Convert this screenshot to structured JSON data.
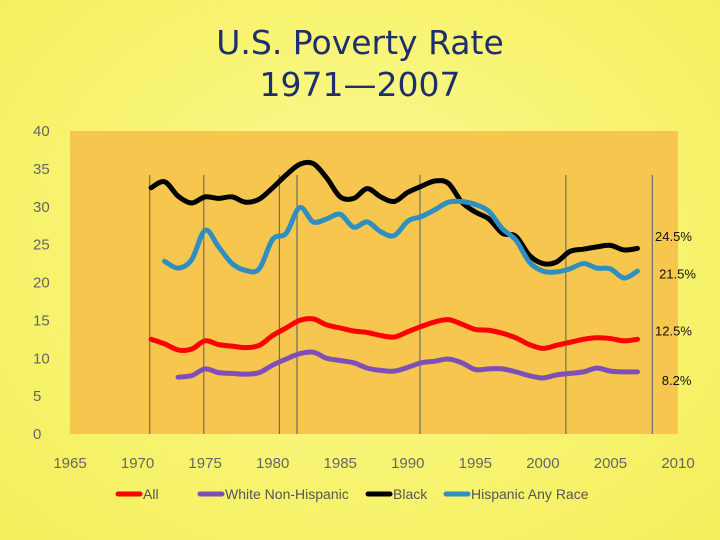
{
  "title_line1": "U.S. Poverty Rate",
  "title_line2": "1971—2007",
  "chart_data": {
    "type": "line",
    "title": "U.S. Poverty Rate 1971—2007",
    "xlim": [
      1965,
      2010
    ],
    "ylim": [
      0,
      40
    ],
    "xticks": [
      1965,
      1970,
      1975,
      1980,
      1985,
      1990,
      1995,
      2000,
      2005,
      2010
    ],
    "yticks": [
      0,
      5,
      10,
      15,
      20,
      25,
      30,
      35,
      40
    ],
    "grid": false,
    "legend": "bottom",
    "plot_background": "#f6c64e",
    "recession_lines": [
      1970.9,
      1974.9,
      1980.5,
      1981.8,
      1990.9,
      2001.7,
      2008.1
    ],
    "series": [
      {
        "name": "All",
        "color": "#ff0000",
        "x": [
          1971,
          1972,
          1973,
          1974,
          1975,
          1976,
          1977,
          1978,
          1979,
          1980,
          1981,
          1982,
          1983,
          1984,
          1985,
          1986,
          1987,
          1988,
          1989,
          1990,
          1991,
          1992,
          1993,
          1994,
          1995,
          1996,
          1997,
          1998,
          1999,
          2000,
          2001,
          2002,
          2003,
          2004,
          2005,
          2006,
          2007
        ],
        "y": [
          12.5,
          11.9,
          11.1,
          11.2,
          12.3,
          11.8,
          11.6,
          11.4,
          11.7,
          13.0,
          14.0,
          15.0,
          15.2,
          14.4,
          14.0,
          13.6,
          13.4,
          13.0,
          12.8,
          13.5,
          14.2,
          14.8,
          15.1,
          14.5,
          13.8,
          13.7,
          13.3,
          12.7,
          11.8,
          11.3,
          11.7,
          12.1,
          12.5,
          12.7,
          12.6,
          12.3,
          12.5
        ]
      },
      {
        "name": "White Non-Hispanic",
        "color": "#7f4fb8",
        "x": [
          1973,
          1974,
          1975,
          1976,
          1977,
          1978,
          1979,
          1980,
          1981,
          1982,
          1983,
          1984,
          1985,
          1986,
          1987,
          1988,
          1989,
          1990,
          1991,
          1992,
          1993,
          1994,
          1995,
          1996,
          1997,
          1998,
          1999,
          2000,
          2001,
          2002,
          2003,
          2004,
          2005,
          2006,
          2007
        ],
        "y": [
          7.5,
          7.7,
          8.6,
          8.1,
          8.0,
          7.9,
          8.1,
          9.1,
          9.9,
          10.6,
          10.8,
          10.0,
          9.7,
          9.4,
          8.7,
          8.4,
          8.3,
          8.8,
          9.4,
          9.6,
          9.9,
          9.4,
          8.5,
          8.6,
          8.6,
          8.2,
          7.7,
          7.4,
          7.8,
          8.0,
          8.2,
          8.7,
          8.3,
          8.2,
          8.2
        ]
      },
      {
        "name": "Black",
        "color": "#000000",
        "x": [
          1971,
          1972,
          1973,
          1974,
          1975,
          1976,
          1977,
          1978,
          1979,
          1980,
          1981,
          1982,
          1983,
          1984,
          1985,
          1986,
          1987,
          1988,
          1989,
          1990,
          1991,
          1992,
          1993,
          1994,
          1995,
          1996,
          1997,
          1998,
          1999,
          2000,
          2001,
          2002,
          2003,
          2004,
          2005,
          2006,
          2007
        ],
        "y": [
          32.5,
          33.3,
          31.4,
          30.5,
          31.3,
          31.1,
          31.3,
          30.6,
          31.0,
          32.5,
          34.2,
          35.6,
          35.7,
          33.8,
          31.3,
          31.1,
          32.4,
          31.3,
          30.7,
          31.9,
          32.7,
          33.4,
          33.1,
          30.6,
          29.3,
          28.4,
          26.5,
          26.1,
          23.6,
          22.5,
          22.7,
          24.1,
          24.4,
          24.7,
          24.9,
          24.3,
          24.5
        ]
      },
      {
        "name": "Hispanic Any Race",
        "color": "#2e8fc0",
        "x": [
          1972,
          1973,
          1974,
          1975,
          1976,
          1977,
          1978,
          1979,
          1980,
          1981,
          1982,
          1983,
          1984,
          1985,
          1986,
          1987,
          1988,
          1989,
          1990,
          1991,
          1992,
          1993,
          1994,
          1995,
          1996,
          1997,
          1998,
          1999,
          2000,
          2001,
          2002,
          2003,
          2004,
          2005,
          2006,
          2007
        ],
        "y": [
          22.8,
          21.9,
          23.0,
          26.9,
          24.7,
          22.5,
          21.6,
          21.8,
          25.7,
          26.5,
          29.9,
          28.0,
          28.4,
          29.0,
          27.3,
          28.0,
          26.7,
          26.2,
          28.1,
          28.7,
          29.6,
          30.6,
          30.7,
          30.3,
          29.4,
          27.1,
          25.6,
          22.7,
          21.5,
          21.4,
          21.8,
          22.5,
          21.9,
          21.8,
          20.6,
          21.5
        ]
      }
    ],
    "annotations": [
      {
        "text": "24.5%",
        "x": 2008.3,
        "y": 25.5
      },
      {
        "text": "21.5%",
        "x": 2008.6,
        "y": 20.5
      },
      {
        "text": "12.5%",
        "x": 2008.3,
        "y": 13.0
      },
      {
        "text": "8.2%",
        "x": 2008.8,
        "y": 6.5
      }
    ]
  }
}
